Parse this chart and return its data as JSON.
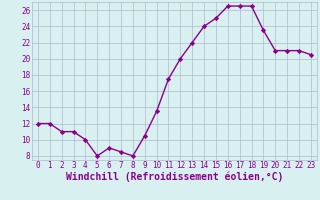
{
  "x": [
    0,
    1,
    2,
    3,
    4,
    5,
    6,
    7,
    8,
    9,
    10,
    11,
    12,
    13,
    14,
    15,
    16,
    17,
    18,
    19,
    20,
    21,
    22,
    23
  ],
  "y": [
    12,
    12,
    11,
    11,
    10,
    8,
    9,
    8.5,
    8,
    10.5,
    13.5,
    17.5,
    20,
    22,
    24,
    25,
    26.5,
    26.5,
    26.5,
    23.5,
    21,
    21,
    21,
    20.5
  ],
  "line_color": "#8b008b",
  "marker": "D",
  "marker_size": 2.2,
  "bg_color": "#d8f0f0",
  "grid_color": "#b0b8d0",
  "xlabel": "Windchill (Refroidissement éolien,°C)",
  "xlabel_color": "#8b008b",
  "xlim": [
    -0.5,
    23.5
  ],
  "ylim": [
    7.5,
    27
  ],
  "yticks": [
    8,
    10,
    12,
    14,
    16,
    18,
    20,
    22,
    24,
    26
  ],
  "xticks": [
    0,
    1,
    2,
    3,
    4,
    5,
    6,
    7,
    8,
    9,
    10,
    11,
    12,
    13,
    14,
    15,
    16,
    17,
    18,
    19,
    20,
    21,
    22,
    23
  ],
  "tick_color": "#8b008b",
  "tick_fontsize": 5.5,
  "xlabel_fontsize": 7.0,
  "linewidth": 1.0
}
